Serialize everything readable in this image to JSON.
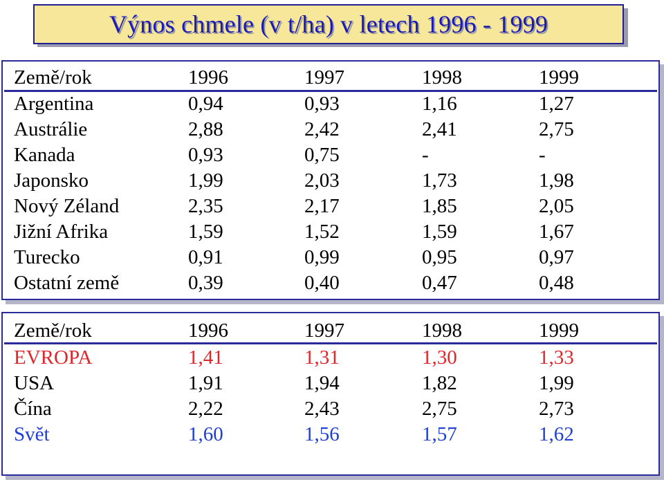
{
  "title": "Výnos chmele (v t/ha) v letech 1996 - 1999",
  "table1": {
    "header": [
      "Země/rok",
      "1996",
      "1997",
      "1998",
      "1999"
    ],
    "rows": [
      [
        "Argentina",
        "0,94",
        "0,93",
        "1,16",
        "1,27"
      ],
      [
        "Austrálie",
        "2,88",
        "2,42",
        "2,41",
        "2,75"
      ],
      [
        "Kanada",
        "0,93",
        "0,75",
        "-",
        "-"
      ],
      [
        "Japonsko",
        "1,99",
        "2,03",
        "1,73",
        "1,98"
      ],
      [
        "Nový Zéland",
        "2,35",
        "2,17",
        "1,85",
        "2,05"
      ],
      [
        "Jižní Afrika",
        "1,59",
        "1,52",
        "1,59",
        "1,67"
      ],
      [
        "Turecko",
        "0,91",
        "0,99",
        "0,95",
        "0,97"
      ],
      [
        "Ostatní země",
        "0,39",
        "0,40",
        "0,47",
        "0,48"
      ]
    ]
  },
  "table2": {
    "header": [
      "Země/rok",
      "1996",
      "1997",
      "1998",
      "1999"
    ],
    "rows": [
      [
        "EVROPA",
        "1,41",
        "1,31",
        "1,30",
        "1,33"
      ],
      [
        "USA",
        "1,91",
        "1,94",
        "1,82",
        "1,99"
      ],
      [
        "Čína",
        "2,22",
        "2,43",
        "2,75",
        "2,73"
      ],
      [
        "Svět",
        "1,60",
        "1,56",
        "1,57",
        "1,62"
      ]
    ]
  },
  "colors": {
    "title_text": "#1a1ab8",
    "title_bg": "#f6e79a",
    "europe_row": "#e1262b",
    "world_row": "#1f3fd0",
    "border": "#2a2a9a"
  }
}
